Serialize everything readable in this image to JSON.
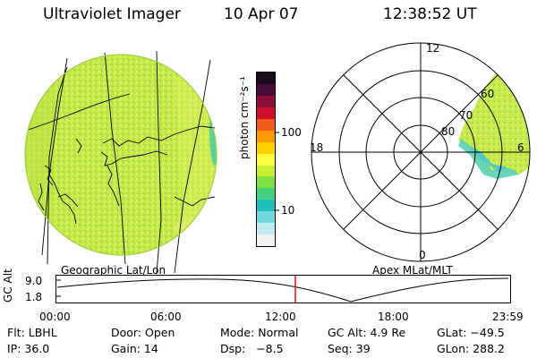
{
  "header": {
    "title": "Ultraviolet Imager",
    "date": "10 Apr 07",
    "time": "12:38:52 UT"
  },
  "colorbar": {
    "unit_label": "photon cm⁻²s⁻¹",
    "ticks": [
      "100",
      "10"
    ],
    "colors": [
      "#1a0a1a",
      "#4a0d3a",
      "#8c0f3a",
      "#d0102a",
      "#f25a1a",
      "#ff9a00",
      "#ffd000",
      "#ffff40",
      "#c8f030",
      "#80e040",
      "#40d080",
      "#20c0c0",
      "#70d8e0",
      "#c0ecf0",
      "#f0f0f0"
    ]
  },
  "left_panel": {
    "label": "Geographic Lat/Lon"
  },
  "right_panel": {
    "label": "Apex  MLat/MLT",
    "mlt_labels": [
      "12",
      "18",
      "6",
      "0"
    ],
    "lat_labels": [
      "60",
      "70",
      "80"
    ]
  },
  "altitude_plot": {
    "ylabel": "GC Alt",
    "ticks": [
      "9.0",
      "1.8"
    ],
    "time_ticks": [
      "00:00",
      "06:00",
      "12:00",
      "18:00",
      "23:59"
    ],
    "marker_color": "#e01010"
  },
  "info": {
    "filter": "Flt: LBHL",
    "door": "Door: Open",
    "mode": "Mode: Normal",
    "gc_alt": "GC Alt: 4.9 Re",
    "glat": "GLat: −49.5",
    "ip": "IP: 36.0",
    "gain": "Gain: 14",
    "dsp": "Dsp:   −8.5",
    "seq": "Seq: 39",
    "glon": "GLon: 288.2"
  }
}
